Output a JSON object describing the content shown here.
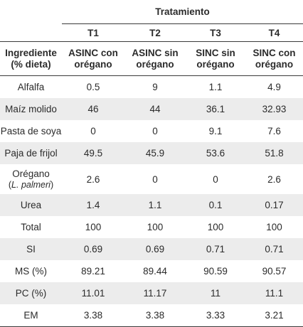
{
  "header": {
    "group_label": "Tratamiento",
    "ingredient_label_line1": "Ingrediente",
    "ingredient_label_line2": "(% dieta)",
    "treatments": [
      {
        "code": "T1",
        "name_line1": "ASINC con",
        "name_line2": "orégano"
      },
      {
        "code": "T2",
        "name_line1": "ASINC sin",
        "name_line2": "orégano"
      },
      {
        "code": "T3",
        "name_line1": "SINC sin",
        "name_line2": "orégano"
      },
      {
        "code": "T4",
        "name_line1": "SINC con",
        "name_line2": "orégano"
      }
    ]
  },
  "rows": [
    {
      "label": "Alfalfa",
      "values": [
        "0.5",
        "9",
        "1.1",
        "4.9"
      ]
    },
    {
      "label": "Maíz molido",
      "values": [
        "46",
        "44",
        "36.1",
        "32.93"
      ]
    },
    {
      "label": "Pasta de soya",
      "values": [
        "0",
        "0",
        "9.1",
        "7.6"
      ]
    },
    {
      "label": "Paja de frijol",
      "values": [
        "49.5",
        "45.9",
        "53.6",
        "51.8"
      ]
    },
    {
      "label": "Orégano",
      "label_sub": "(L. palmeri)",
      "label_sub_prefix": "(",
      "label_sub_italic": "L. palmeri",
      "label_sub_suffix": ")",
      "values": [
        "2.6",
        "0",
        "0",
        "2.6"
      ]
    },
    {
      "label": "Urea",
      "values": [
        "1.4",
        "1.1",
        "0.1",
        "0.17"
      ]
    },
    {
      "label": "Total",
      "values": [
        "100",
        "100",
        "100",
        "100"
      ]
    },
    {
      "label": "SI",
      "values": [
        "0.69",
        "0.69",
        "0.71",
        "0.71"
      ]
    },
    {
      "label": "MS (%)",
      "values": [
        "89.21",
        "89.44",
        "90.59",
        "90.57"
      ]
    },
    {
      "label": "PC (%)",
      "values": [
        "11.01",
        "11.17",
        "11",
        "11.1"
      ]
    },
    {
      "label": "EM",
      "values": [
        "3.38",
        "3.38",
        "3.33",
        "3.21"
      ]
    }
  ]
}
